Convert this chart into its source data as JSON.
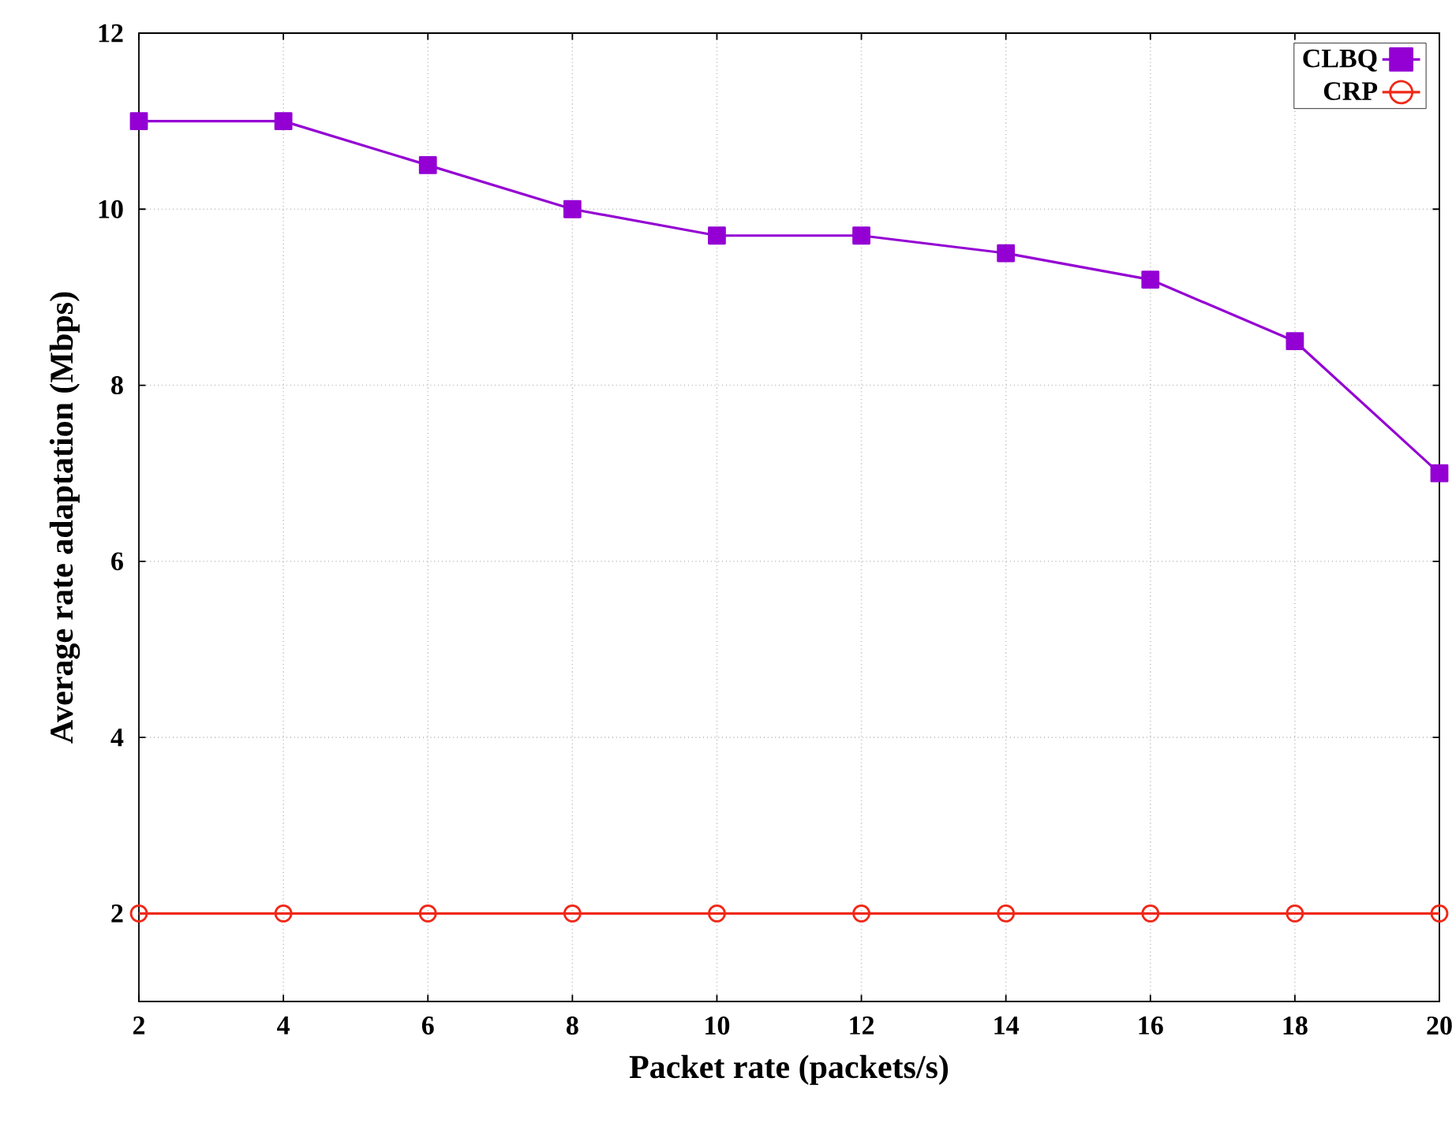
{
  "chart_data": {
    "type": "line",
    "xlabel": "Packet rate (packets/s)",
    "ylabel": "Average rate adaptation (Mbps)",
    "x": [
      2,
      4,
      6,
      8,
      10,
      12,
      14,
      16,
      18,
      20
    ],
    "series": [
      {
        "name": "CLBQ",
        "color": "#9400d3",
        "marker": "square",
        "values": [
          11,
          11,
          10.5,
          10,
          9.7,
          9.7,
          9.5,
          9.2,
          8.5,
          7
        ]
      },
      {
        "name": "CRP",
        "color": "#f02818",
        "marker": "circle",
        "values": [
          2,
          2,
          2,
          2,
          2,
          2,
          2,
          2,
          2,
          2
        ]
      }
    ],
    "xlim": [
      2,
      20
    ],
    "xticks": [
      2,
      4,
      6,
      8,
      10,
      12,
      14,
      16,
      18,
      20
    ],
    "ylim": [
      1,
      12
    ],
    "yticks": [
      2,
      4,
      6,
      8,
      10,
      12
    ],
    "grid": true,
    "legend": "top right",
    "line_style": "solid"
  }
}
